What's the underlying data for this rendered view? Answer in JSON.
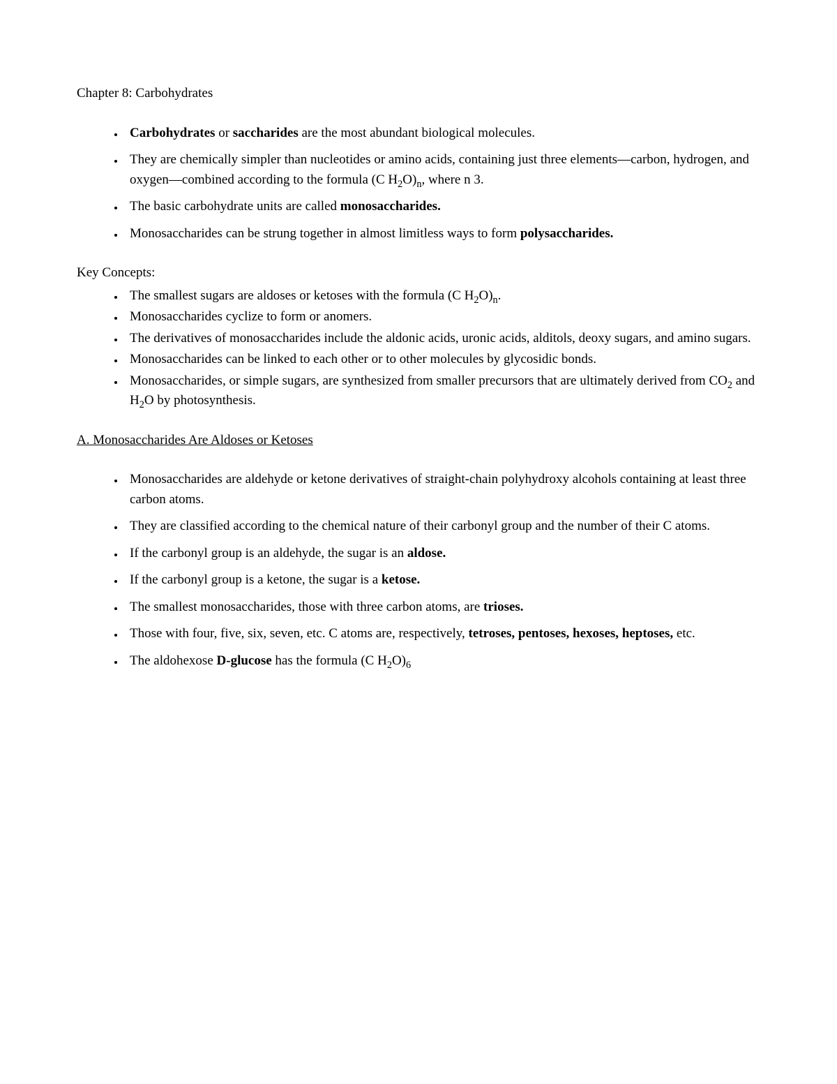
{
  "page": {
    "background_color": "#ffffff",
    "text_color": "#000000",
    "font_family": "Times New Roman",
    "font_size_pt": 14
  },
  "chapter_title": "Chapter 8: Carbohydrates",
  "intro_bullets": [
    {
      "segments": [
        {
          "text": "Carbohydrates",
          "bold": true
        },
        {
          "text": " or ",
          "bold": false
        },
        {
          "text": "saccharides",
          "bold": true
        },
        {
          "text": " are the most abundant biological molecules.",
          "bold": false
        }
      ]
    },
    {
      "segments": [
        {
          "text": "They are chemically simpler than nucleotides or amino acids, containing just three elements—carbon, hydrogen, and oxygen—combined according to the formula (C H",
          "bold": false
        },
        {
          "text": "2",
          "bold": false,
          "sub": true
        },
        {
          "text": "O)",
          "bold": false
        },
        {
          "text": "n",
          "bold": false,
          "sub": true
        },
        {
          "text": ", where n 3.",
          "bold": false
        }
      ]
    },
    {
      "segments": [
        {
          "text": "The basic carbohydrate units are called ",
          "bold": false
        },
        {
          "text": "monosaccharides.",
          "bold": true
        }
      ]
    },
    {
      "segments": [
        {
          "text": "Monosaccharides can be strung together in almost limitless ways to form ",
          "bold": false
        },
        {
          "text": "polysaccharides.",
          "bold": true
        }
      ]
    }
  ],
  "key_concepts_heading": "Key Concepts:",
  "key_concepts": [
    {
      "segments": [
        {
          "text": "The smallest sugars are aldoses or ketoses with the formula (C H",
          "bold": false
        },
        {
          "text": "2",
          "bold": false,
          "sub": true
        },
        {
          "text": "O)",
          "bold": false
        },
        {
          "text": "n",
          "bold": false,
          "sub": true
        },
        {
          "text": ".",
          "bold": false
        }
      ]
    },
    {
      "segments": [
        {
          "text": "Monosaccharides cyclize to form or anomers.",
          "bold": false
        }
      ]
    },
    {
      "segments": [
        {
          "text": "The derivatives of monosaccharides include the aldonic acids, uronic acids, alditols, deoxy sugars, and amino sugars.",
          "bold": false
        }
      ]
    },
    {
      "segments": [
        {
          "text": "Monosaccharides can be linked to each other or to other molecules by glycosidic bonds.",
          "bold": false
        }
      ]
    },
    {
      "segments": [
        {
          "text": "Monosaccharides, or simple sugars, are synthesized from smaller precursors that are ultimately derived from CO",
          "bold": false
        },
        {
          "text": "2",
          "bold": false,
          "sub": true
        },
        {
          "text": " and H",
          "bold": false
        },
        {
          "text": "2",
          "bold": false,
          "sub": true
        },
        {
          "text": "O by photosynthesis.",
          "bold": false
        }
      ]
    }
  ],
  "section_a_heading": "A. Monosaccharides Are Aldoses or Ketoses",
  "section_a_bullets": [
    {
      "segments": [
        {
          "text": "Monosaccharides are aldehyde or ketone derivatives of straight-chain polyhydroxy alcohols containing at least three carbon atoms.",
          "bold": false
        }
      ]
    },
    {
      "segments": [
        {
          "text": "They are classified according to the chemical nature of their carbonyl group and the number of their C atoms.",
          "bold": false
        }
      ]
    },
    {
      "segments": [
        {
          "text": "If the carbonyl group is an aldehyde, the sugar is an ",
          "bold": false
        },
        {
          "text": "aldose.",
          "bold": true
        }
      ]
    },
    {
      "segments": [
        {
          "text": "If the carbonyl group is a ketone, the sugar is a ",
          "bold": false
        },
        {
          "text": "ketose.",
          "bold": true
        }
      ]
    },
    {
      "segments": [
        {
          "text": "The smallest monosaccharides, those with three carbon atoms, are ",
          "bold": false
        },
        {
          "text": "trioses.",
          "bold": true
        }
      ]
    },
    {
      "segments": [
        {
          "text": "Those with four, five, six, seven, etc. C atoms are, respectively, ",
          "bold": false
        },
        {
          "text": "tetroses, pentoses, hexoses, heptoses,",
          "bold": true
        },
        {
          "text": " etc.",
          "bold": false
        }
      ]
    },
    {
      "segments": [
        {
          "text": "The aldohexose ",
          "bold": false
        },
        {
          "text": "D-glucose",
          "bold": true
        },
        {
          "text": " has the formula (C H",
          "bold": false
        },
        {
          "text": "2",
          "bold": false,
          "sub": true
        },
        {
          "text": "O)",
          "bold": false
        },
        {
          "text": "6",
          "bold": false,
          "sub": true
        }
      ]
    }
  ]
}
